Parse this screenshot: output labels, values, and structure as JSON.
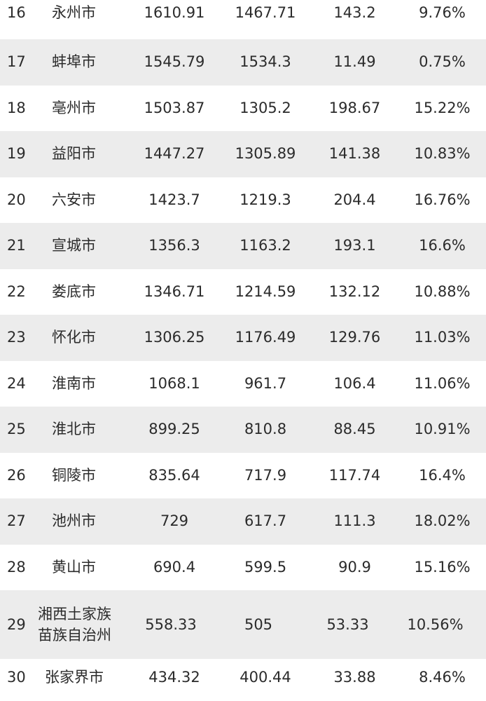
{
  "rows": [
    {
      "rank": "16",
      "city": "永州市",
      "v1": "1610.91",
      "v2": "1467.71",
      "v3": "143.2",
      "pct": "9.76%"
    },
    {
      "rank": "17",
      "city": "蚌埠市",
      "v1": "1545.79",
      "v2": "1534.3",
      "v3": "11.49",
      "pct": "0.75%"
    },
    {
      "rank": "18",
      "city": "亳州市",
      "v1": "1503.87",
      "v2": "1305.2",
      "v3": "198.67",
      "pct": "15.22%"
    },
    {
      "rank": "19",
      "city": "益阳市",
      "v1": "1447.27",
      "v2": "1305.89",
      "v3": "141.38",
      "pct": "10.83%"
    },
    {
      "rank": "20",
      "city": "六安市",
      "v1": "1423.7",
      "v2": "1219.3",
      "v3": "204.4",
      "pct": "16.76%"
    },
    {
      "rank": "21",
      "city": "宣城市",
      "v1": "1356.3",
      "v2": "1163.2",
      "v3": "193.1",
      "pct": "16.6%"
    },
    {
      "rank": "22",
      "city": "娄底市",
      "v1": "1346.71",
      "v2": "1214.59",
      "v3": "132.12",
      "pct": "10.88%"
    },
    {
      "rank": "23",
      "city": "怀化市",
      "v1": "1306.25",
      "v2": "1176.49",
      "v3": "129.76",
      "pct": "11.03%"
    },
    {
      "rank": "24",
      "city": "淮南市",
      "v1": "1068.1",
      "v2": "961.7",
      "v3": "106.4",
      "pct": "11.06%"
    },
    {
      "rank": "25",
      "city": "淮北市",
      "v1": "899.25",
      "v2": "810.8",
      "v3": "88.45",
      "pct": "10.91%"
    },
    {
      "rank": "26",
      "city": "铜陵市",
      "v1": "835.64",
      "v2": "717.9",
      "v3": "117.74",
      "pct": "16.4%"
    },
    {
      "rank": "27",
      "city": "池州市",
      "v1": "729",
      "v2": "617.7",
      "v3": "111.3",
      "pct": "18.02%"
    },
    {
      "rank": "28",
      "city": "黄山市",
      "v1": "690.4",
      "v2": "599.5",
      "v3": "90.9",
      "pct": "15.16%"
    },
    {
      "rank": "29",
      "city_line1": "湘西土家族",
      "city_line2": "苗族自治州",
      "v1": "558.33",
      "v2": "505",
      "v3": "53.33",
      "pct": "10.56%"
    },
    {
      "rank": "30",
      "city": "张家界市",
      "v1": "434.32",
      "v2": "400.44",
      "v3": "33.88",
      "pct": "8.46%"
    }
  ]
}
